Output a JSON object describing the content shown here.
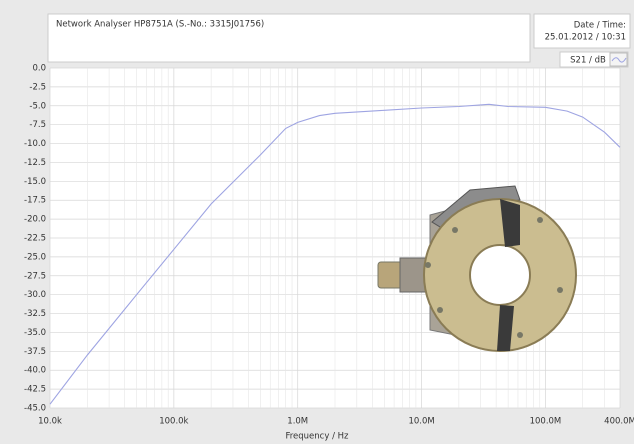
{
  "chart_data": {
    "type": "line",
    "title": "Network Analyser HP8751A (S.-No.: 3315J01756)",
    "date_label": "Date / Time:",
    "date_value": "25.01.2012 / 10:31",
    "x_label": "Frequency / Hz",
    "x": [
      10000,
      20000,
      50000,
      100000,
      200000,
      500000,
      800000,
      1000000,
      1500000,
      2000000,
      5000000,
      10000000,
      20000000,
      35000000,
      50000000,
      100000000,
      150000000,
      200000000,
      300000000,
      400000000
    ],
    "series": [
      {
        "name": "S21 / dB",
        "color": "#9ea4e2",
        "values": [
          -44.5,
          -38,
          -30,
          -24,
          -18,
          -11.5,
          -8,
          -7.2,
          -6.3,
          -6,
          -5.6,
          -5.3,
          -5.1,
          -4.8,
          -5.1,
          -5.2,
          -5.7,
          -6.5,
          -8.5,
          -10.5
        ]
      }
    ],
    "xlim": [
      10000,
      400000000
    ],
    "xticks": [
      {
        "value": 10000,
        "label": "10.0k"
      },
      {
        "value": 100000,
        "label": "100.0k"
      },
      {
        "value": 1000000,
        "label": "1.0M"
      },
      {
        "value": 10000000,
        "label": "10.0M"
      },
      {
        "value": 100000000,
        "label": "100.0M"
      },
      {
        "value": 400000000,
        "label": "400.0M"
      }
    ],
    "x_log": true,
    "ylim": [
      -45,
      0
    ],
    "yticks": [
      {
        "value": 0,
        "label": "0.0"
      },
      -2.5,
      {
        "value": -5,
        "label": "-5.0"
      },
      -7.5,
      {
        "value": -10,
        "label": "-10.0"
      },
      -12.5,
      {
        "value": -15,
        "label": "-15.0"
      },
      -17.5,
      {
        "value": -20,
        "label": "-20.0"
      },
      -22.5,
      {
        "value": -25,
        "label": "-25.0"
      },
      -27.5,
      {
        "value": -30,
        "label": "-30.0"
      },
      -32.5,
      {
        "value": -35,
        "label": "-35.0"
      },
      -37.5,
      {
        "value": -40,
        "label": "-40.0"
      },
      -42.5,
      {
        "value": -45,
        "label": "-45.0"
      }
    ],
    "grid": true
  }
}
